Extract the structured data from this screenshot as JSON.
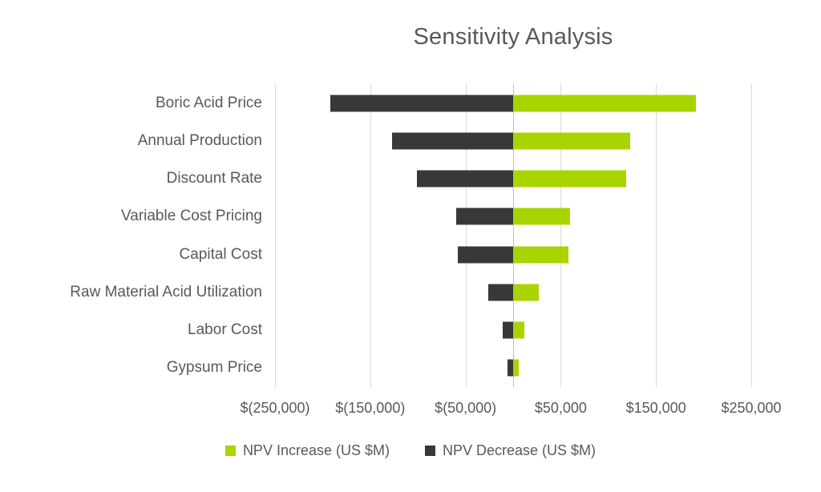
{
  "chart_data": {
    "type": "bar",
    "orientation": "horizontal-tornado",
    "title": "Sensitivity Analysis",
    "categories": [
      "Boric Acid Price",
      "Annual Production",
      "Discount Rate",
      "Variable Cost Pricing",
      "Capital Cost",
      "Raw Material Acid Utilization",
      "Labor Cost",
      "Gypsum Price"
    ],
    "series": [
      {
        "name": "NPV Increase (US $M)",
        "color": "#A8D400",
        "values": [
          192000,
          123000,
          119000,
          60000,
          58000,
          27000,
          12000,
          6000
        ]
      },
      {
        "name": "NPV Decrease (US $M)",
        "color": "#383838",
        "values": [
          -192000,
          -127000,
          -101000,
          -60000,
          -58000,
          -26000,
          -11000,
          -6000
        ]
      }
    ],
    "xlim": [
      -250000,
      250000
    ],
    "x_ticks": [
      {
        "value": -250000,
        "label": "$(250,000)"
      },
      {
        "value": -150000,
        "label": "$(150,000)"
      },
      {
        "value": -50000,
        "label": "$(50,000)"
      },
      {
        "value": 50000,
        "label": "$50,000"
      },
      {
        "value": 150000,
        "label": "$150,000"
      },
      {
        "value": 250000,
        "label": "$250,000"
      }
    ],
    "grid": true,
    "legend_position": "bottom",
    "colors": {
      "text": "#595959",
      "gridline": "#D9D9D9",
      "zero_axis": "#BFBFBF",
      "background": "#FFFFFF"
    }
  }
}
